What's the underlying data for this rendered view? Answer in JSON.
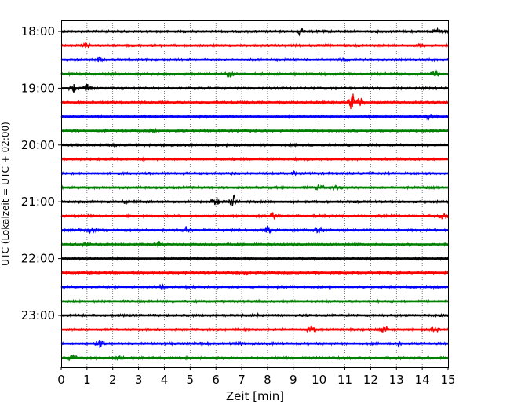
{
  "chart_data": {
    "type": "line",
    "title": "",
    "xlabel": "Zeit  [min]",
    "ylabel": "UTC (Lokalzeit = UTC + 02:00)",
    "xlim": [
      0,
      15
    ],
    "x_ticks": [
      "0",
      "1",
      "2",
      "3",
      "4",
      "5",
      "6",
      "7",
      "8",
      "9",
      "10",
      "11",
      "12",
      "13",
      "14",
      "15"
    ],
    "y_tick_labels": [
      "18:00",
      "19:00",
      "20:00",
      "21:00",
      "22:00",
      "23:00"
    ],
    "grid": "vertical dotted",
    "colors": [
      "#000000",
      "#ff0000",
      "#0000ff",
      "#008000"
    ],
    "traces": [
      {
        "time": "18:00",
        "color": "#000000",
        "events": [
          {
            "t": 9.3,
            "amp": 0.5
          },
          {
            "t": 14.6,
            "amp": 0.5
          }
        ]
      },
      {
        "time": "18:15",
        "color": "#ff0000",
        "events": [
          {
            "t": 1.0,
            "amp": 0.4
          },
          {
            "t": 13.9,
            "amp": 0.3
          }
        ]
      },
      {
        "time": "18:30",
        "color": "#0000ff",
        "events": [
          {
            "t": 1.5,
            "amp": 0.3
          },
          {
            "t": 11.0,
            "amp": 0.3
          }
        ]
      },
      {
        "time": "18:45",
        "color": "#008000",
        "events": [
          {
            "t": 6.5,
            "amp": 0.5
          },
          {
            "t": 14.5,
            "amp": 0.6
          }
        ]
      },
      {
        "time": "19:00",
        "color": "#000000",
        "events": [
          {
            "t": 0.5,
            "amp": 0.7
          },
          {
            "t": 1.0,
            "amp": 0.7
          }
        ]
      },
      {
        "time": "19:15",
        "color": "#ff0000",
        "events": [
          {
            "t": 11.3,
            "amp": 1.2
          },
          {
            "t": 11.6,
            "amp": 0.7
          }
        ]
      },
      {
        "time": "19:30",
        "color": "#0000ff",
        "events": [
          {
            "t": 14.3,
            "amp": 0.4
          }
        ]
      },
      {
        "time": "19:45",
        "color": "#008000",
        "events": [
          {
            "t": 3.5,
            "amp": 0.4
          }
        ]
      },
      {
        "time": "20:00",
        "color": "#000000",
        "events": []
      },
      {
        "time": "20:15",
        "color": "#ff0000",
        "events": []
      },
      {
        "time": "20:30",
        "color": "#0000ff",
        "events": [
          {
            "t": 9.0,
            "amp": 0.3
          }
        ]
      },
      {
        "time": "20:45",
        "color": "#008000",
        "events": [
          {
            "t": 10.0,
            "amp": 0.6
          },
          {
            "t": 10.7,
            "amp": 0.4
          }
        ]
      },
      {
        "time": "21:00",
        "color": "#000000",
        "events": [
          {
            "t": 6.0,
            "amp": 0.7
          },
          {
            "t": 6.7,
            "amp": 0.9
          },
          {
            "t": 2.4,
            "amp": 0.3
          }
        ]
      },
      {
        "time": "21:15",
        "color": "#ff0000",
        "events": [
          {
            "t": 8.2,
            "amp": 0.6
          },
          {
            "t": 14.8,
            "amp": 0.5
          }
        ]
      },
      {
        "time": "21:30",
        "color": "#0000ff",
        "events": [
          {
            "t": 4.9,
            "amp": 0.6
          },
          {
            "t": 8.0,
            "amp": 0.6
          },
          {
            "t": 10.0,
            "amp": 0.6
          },
          {
            "t": 1.2,
            "amp": 0.4
          }
        ]
      },
      {
        "time": "21:45",
        "color": "#008000",
        "events": [
          {
            "t": 1.0,
            "amp": 0.6
          },
          {
            "t": 3.8,
            "amp": 0.5
          }
        ]
      },
      {
        "time": "22:00",
        "color": "#000000",
        "events": []
      },
      {
        "time": "22:15",
        "color": "#ff0000",
        "events": [
          {
            "t": 7.2,
            "amp": 0.3
          }
        ]
      },
      {
        "time": "22:30",
        "color": "#0000ff",
        "events": [
          {
            "t": 3.9,
            "amp": 0.3
          }
        ]
      },
      {
        "time": "22:45",
        "color": "#008000",
        "events": []
      },
      {
        "time": "23:00",
        "color": "#000000",
        "events": [
          {
            "t": 7.8,
            "amp": 0.3
          }
        ]
      },
      {
        "time": "23:15",
        "color": "#ff0000",
        "events": [
          {
            "t": 9.7,
            "amp": 0.6
          },
          {
            "t": 12.5,
            "amp": 0.6
          },
          {
            "t": 14.5,
            "amp": 0.6
          }
        ]
      },
      {
        "time": "23:30",
        "color": "#0000ff",
        "events": [
          {
            "t": 1.5,
            "amp": 0.7
          },
          {
            "t": 13.1,
            "amp": 0.4
          },
          {
            "t": 6.9,
            "amp": 0.3
          }
        ]
      },
      {
        "time": "23:45",
        "color": "#008000",
        "events": [
          {
            "t": 0.4,
            "amp": 0.6
          },
          {
            "t": 2.2,
            "amp": 0.3
          }
        ]
      }
    ]
  }
}
